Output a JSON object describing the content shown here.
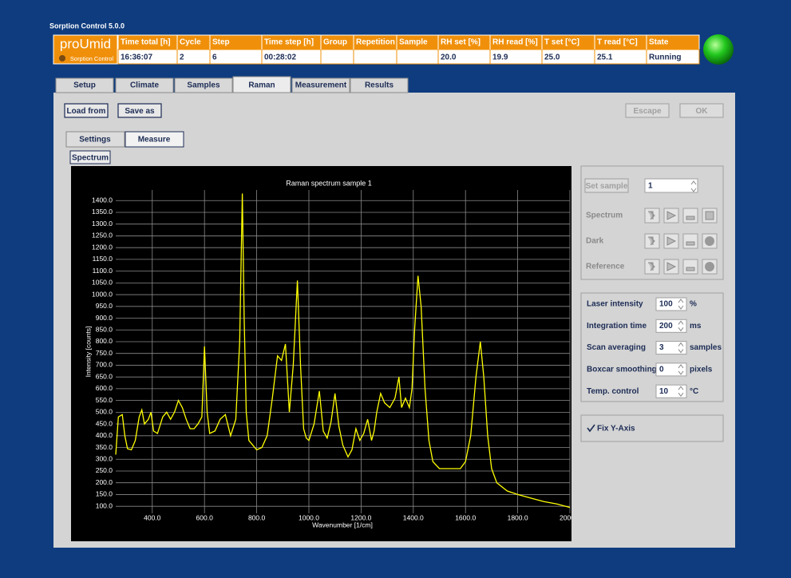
{
  "window_title": "Sorption Control 5.0.0",
  "logo": {
    "name": "proUmid",
    "subtitle": "Sorption Control"
  },
  "status_table": {
    "columns": [
      {
        "header": "Time total [h]",
        "value": "16:36:07"
      },
      {
        "header": "Cycle",
        "value": 2
      },
      {
        "header": "Step",
        "value": 6
      },
      {
        "header": "Time step [h]",
        "value": "00:28:02"
      },
      {
        "header": "Group"
      },
      {
        "header": "Repetition"
      },
      {
        "header": "Sample"
      },
      {
        "header": "RH set [%]",
        "value": "20.0"
      },
      {
        "header": "RH read [%]",
        "value": "19.9"
      },
      {
        "header": "T set [°C]",
        "value": "25.0"
      },
      {
        "header": "T read [°C]",
        "value": "25.1"
      },
      {
        "header": "State",
        "value": "Running"
      }
    ]
  },
  "tabs": [
    "Setup",
    "Climate",
    "Samples",
    "Raman",
    "Measurement",
    "Results"
  ],
  "active_tab": "Raman",
  "buttons": {
    "load": "Load from",
    "save": "Save as",
    "escape": "Escape",
    "ok": "OK"
  },
  "sub_tabs": [
    "Settings",
    "Measure"
  ],
  "active_sub_tab": "Measure",
  "panel_label": "Spectrum",
  "sample": {
    "button": "Set sample",
    "value": 1
  },
  "acquisition_rows": [
    "Spectrum",
    "Dark",
    "Reference"
  ],
  "parameters": [
    {
      "label": "Laser intensity",
      "value": 100,
      "unit": "%"
    },
    {
      "label": "Integration time",
      "value": 200,
      "unit": "ms"
    },
    {
      "label": "Scan averaging",
      "value": 3,
      "unit": "samples"
    },
    {
      "label": "Boxcar smoothing",
      "value": 0,
      "unit": "pixels"
    },
    {
      "label": "Temp. control",
      "value": 10,
      "unit": "°C"
    }
  ],
  "fix_y_axis": {
    "label": "Fix Y-Axis",
    "checked": true
  },
  "chart_data": {
    "type": "line",
    "title": "Raman spectrum sample 1",
    "x_label": "Wavenumber [1/cm]",
    "y_label": "Intensity [counts]",
    "background": "#000000",
    "grid": true,
    "xlim": [
      260,
      2000
    ],
    "ylim": [
      70,
      1445
    ],
    "xticks": [
      {
        "value": 400,
        "label": "400.0"
      },
      {
        "value": 600,
        "label": "600.0"
      },
      {
        "value": 800,
        "label": "800.0"
      },
      {
        "value": 1000,
        "label": "1000.0"
      },
      {
        "value": 1200,
        "label": "1200.0"
      },
      {
        "value": 1400,
        "label": "1400.0"
      },
      {
        "value": 1600,
        "label": "1600.0"
      },
      {
        "value": 1800,
        "label": "1800.0"
      },
      {
        "value": 2000,
        "label": "2000.0"
      }
    ],
    "yticks": [
      {
        "value": 100,
        "label": "100.0"
      },
      {
        "value": 150,
        "label": "150.0"
      },
      {
        "value": 200,
        "label": "200.0"
      },
      {
        "value": 250,
        "label": "250.0"
      },
      {
        "value": 300,
        "label": "300.0"
      },
      {
        "value": 350,
        "label": "350.0"
      },
      {
        "value": 400,
        "label": "400.0"
      },
      {
        "value": 450,
        "label": "450.0"
      },
      {
        "value": 500,
        "label": "500.0"
      },
      {
        "value": 550,
        "label": "550.0"
      },
      {
        "value": 600,
        "label": "600.0"
      },
      {
        "value": 650,
        "label": "650.0"
      },
      {
        "value": 700,
        "label": "700.0"
      },
      {
        "value": 750,
        "label": "750.0"
      },
      {
        "value": 800,
        "label": "800.0"
      },
      {
        "value": 850,
        "label": "850.0"
      },
      {
        "value": 900,
        "label": "900.0"
      },
      {
        "value": 950,
        "label": "950.0"
      },
      {
        "value": 1000,
        "label": "1000.0"
      },
      {
        "value": 1050,
        "label": "1050.0"
      },
      {
        "value": 1100,
        "label": "1100.0"
      },
      {
        "value": 1150,
        "label": "1150.0"
      },
      {
        "value": 1200,
        "label": "1200.0"
      },
      {
        "value": 1250,
        "label": "1250.0"
      },
      {
        "value": 1300,
        "label": "1300.0"
      },
      {
        "value": 1350,
        "label": "1350.0"
      },
      {
        "value": 1400,
        "label": "1400.0"
      }
    ],
    "x": [
      260,
      270,
      285,
      295,
      305,
      320,
      335,
      350,
      360,
      370,
      385,
      395,
      405,
      420,
      440,
      455,
      470,
      485,
      500,
      515,
      530,
      545,
      560,
      575,
      590,
      600,
      610,
      620,
      640,
      660,
      680,
      700,
      720,
      735,
      745,
      752,
      760,
      770,
      785,
      800,
      820,
      840,
      860,
      880,
      895,
      910,
      925,
      940,
      956,
      968,
      980,
      990,
      1000,
      1020,
      1040,
      1055,
      1070,
      1085,
      1100,
      1115,
      1130,
      1150,
      1165,
      1180,
      1195,
      1210,
      1225,
      1240,
      1250,
      1260,
      1275,
      1290,
      1310,
      1330,
      1345,
      1355,
      1370,
      1385,
      1395,
      1405,
      1418,
      1430,
      1445,
      1460,
      1475,
      1500,
      1540,
      1580,
      1600,
      1620,
      1640,
      1657,
      1670,
      1685,
      1700,
      1720,
      1760,
      1800,
      1850,
      1900,
      1950,
      2000
    ],
    "series": [
      {
        "color": "#ffff00",
        "values": [
          320,
          480,
          490,
          400,
          345,
          340,
          380,
          480,
          510,
          450,
          470,
          500,
          420,
          410,
          480,
          500,
          470,
          500,
          550,
          520,
          470,
          430,
          430,
          450,
          480,
          780,
          500,
          410,
          420,
          470,
          490,
          400,
          470,
          800,
          1430,
          900,
          500,
          380,
          360,
          340,
          350,
          400,
          560,
          740,
          720,
          790,
          500,
          700,
          1060,
          700,
          430,
          390,
          380,
          450,
          590,
          420,
          390,
          460,
          580,
          440,
          360,
          310,
          340,
          430,
          380,
          410,
          470,
          380,
          420,
          500,
          580,
          540,
          520,
          560,
          650,
          520,
          560,
          520,
          600,
          850,
          1080,
          950,
          600,
          380,
          290,
          260,
          260,
          260,
          290,
          400,
          650,
          800,
          650,
          400,
          260,
          200,
          165,
          150,
          135,
          120,
          110,
          95
        ]
      }
    ]
  }
}
